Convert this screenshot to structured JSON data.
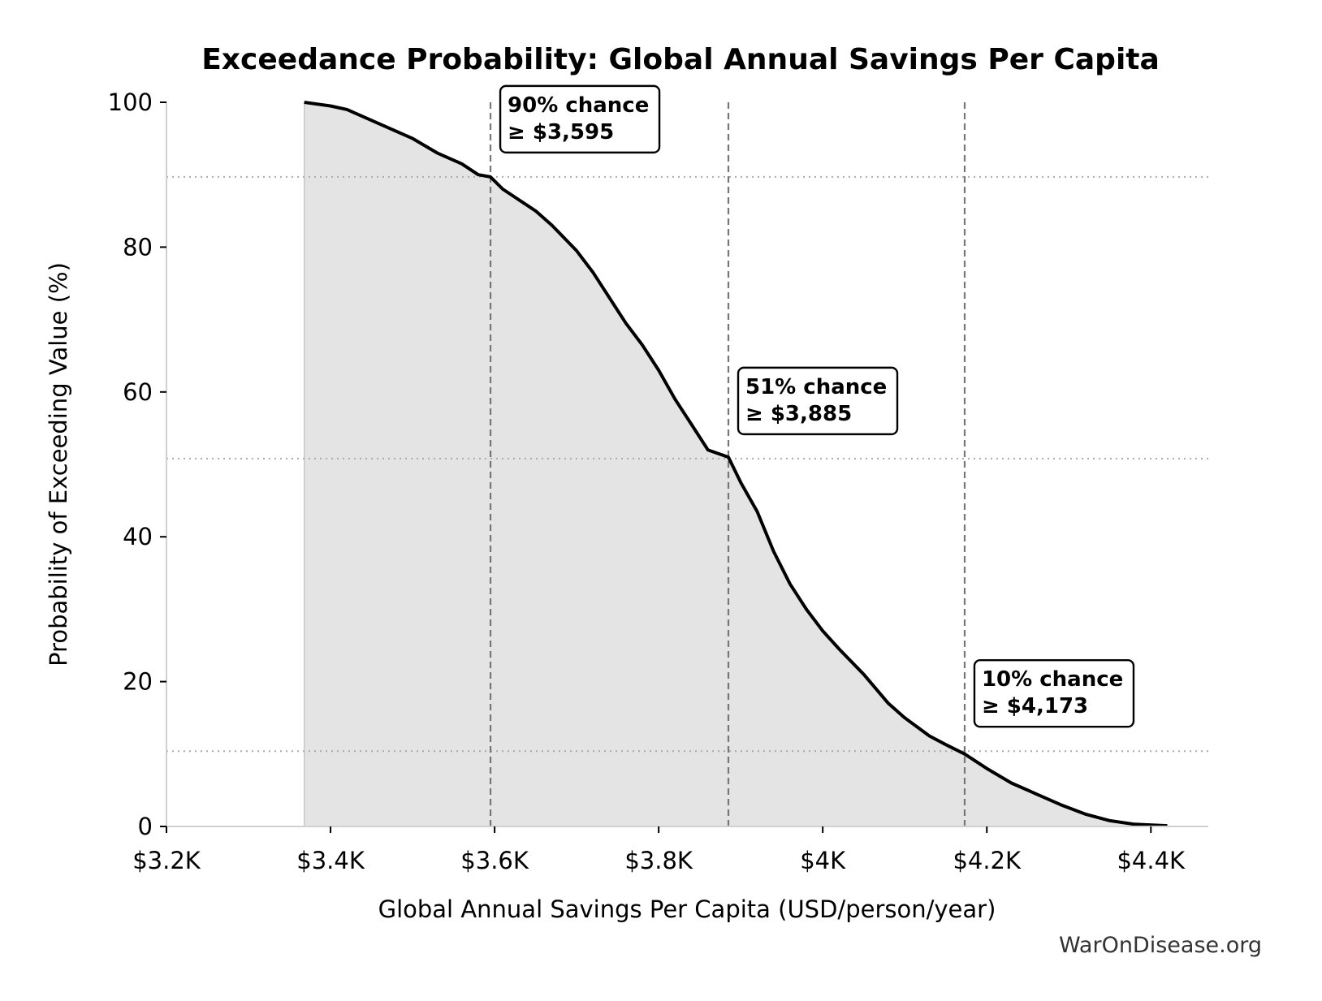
{
  "chart_data": {
    "type": "area",
    "title": "Exceedance Probability: Global Annual Savings Per Capita",
    "xlabel": "Global Annual Savings Per Capita (USD/person/year)",
    "ylabel": "Probability of Exceeding Value (%)",
    "xlim": [
      3200,
      4470
    ],
    "ylim": [
      0,
      100
    ],
    "xticks": [
      3200,
      3400,
      3600,
      3800,
      4000,
      4200,
      4400
    ],
    "xtick_labels": [
      "$3.2K",
      "$3.4K",
      "$3.6K",
      "$3.8K",
      "$4K",
      "$4.2K",
      "$4.4K"
    ],
    "yticks": [
      0,
      20,
      40,
      60,
      80,
      100
    ],
    "ytick_labels": [
      "0",
      "20",
      "40",
      "60",
      "80",
      "100"
    ],
    "grid": false,
    "colors": {
      "line": "#000000",
      "fill": "#e4e4e4",
      "reference": "#777777",
      "hline": "#aaaaaa"
    },
    "series": [
      {
        "x": [
          3368,
          3400,
          3420,
          3450,
          3480,
          3500,
          3530,
          3560,
          3580,
          3595,
          3610,
          3630,
          3650,
          3670,
          3700,
          3720,
          3740,
          3760,
          3780,
          3800,
          3820,
          3840,
          3860,
          3885,
          3900,
          3920,
          3940,
          3960,
          3980,
          4000,
          4020,
          4050,
          4080,
          4100,
          4130,
          4150,
          4173,
          4200,
          4230,
          4260,
          4290,
          4320,
          4350,
          4380,
          4420
        ],
        "y": [
          100,
          99.5,
          99,
          97.5,
          96,
          95,
          93,
          91.5,
          90,
          89.7,
          88,
          86.5,
          85,
          83,
          79.5,
          76.5,
          73,
          69.5,
          66.5,
          63,
          59,
          55.5,
          52,
          51,
          47.5,
          43.5,
          38,
          33.5,
          30,
          27,
          24.5,
          21,
          17,
          15,
          12.5,
          11.3,
          10,
          8,
          6,
          4.5,
          3,
          1.7,
          0.8,
          0.3,
          0.1
        ]
      }
    ],
    "reference_lines": [
      {
        "x": 3595,
        "y": 89.7
      },
      {
        "x": 3885,
        "y": 50.8
      },
      {
        "x": 4173,
        "y": 10.4
      }
    ],
    "support_start": 3368,
    "annotations": [
      {
        "line1": "90% chance",
        "line2": "≥ $3,595",
        "x": 3595,
        "y": 89.7
      },
      {
        "line1": "51% chance",
        "line2": "≥ $3,885",
        "x": 3885,
        "y": 50.8
      },
      {
        "line1": "10% chance",
        "line2": "≥ $4,173",
        "x": 4173,
        "y": 10.4
      }
    ]
  },
  "watermark": "WarOnDisease.org"
}
